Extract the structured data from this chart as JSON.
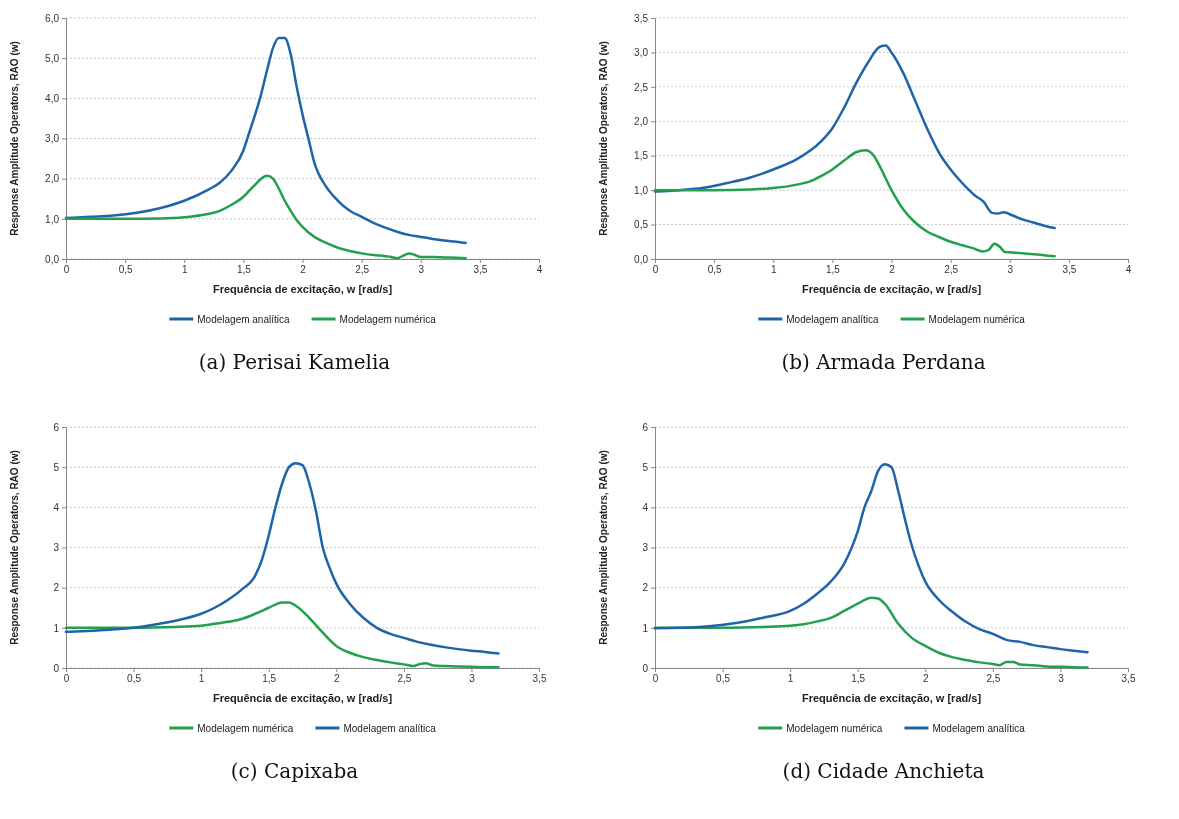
{
  "chart_data": [
    {
      "type": "line",
      "title": "(a) Perisai Kamelia",
      "xlabel": "Frequência de excitação, w [rad/s]",
      "ylabel": "Response Amplitude Operators, RAO (w)",
      "xlim": [
        0,
        4
      ],
      "xticks": [
        0,
        {
          "value": 0.5,
          "label": "0,5"
        },
        1,
        {
          "value": 1.5,
          "label": "1,5"
        },
        2,
        {
          "value": 2.5,
          "label": "2,5"
        },
        3,
        {
          "value": 3.5,
          "label": "3,5"
        },
        4
      ],
      "ylim": [
        0,
        6
      ],
      "yticks": [
        {
          "value": 0,
          "label": "0,0"
        },
        {
          "value": 1,
          "label": "1,0"
        },
        {
          "value": 2,
          "label": "2,0"
        },
        {
          "value": 3,
          "label": "3,0"
        },
        {
          "value": 4,
          "label": "4,0"
        },
        {
          "value": 5,
          "label": "5,0"
        },
        {
          "value": 6,
          "label": "6,0"
        }
      ],
      "grid": "y",
      "legend": "bottom",
      "line_style": "solid",
      "series": [
        {
          "name": "Modelagem analítica",
          "color": "#1f64a8",
          "x": [
            0,
            0.2,
            0.4,
            0.6,
            0.8,
            1.0,
            1.2,
            1.3,
            1.4,
            1.5,
            1.55,
            1.6,
            1.65,
            1.7,
            1.75,
            1.8,
            1.85,
            1.9,
            1.95,
            2.0,
            2.05,
            2.1,
            2.2,
            2.3,
            2.4,
            2.5,
            2.6,
            2.7,
            2.8,
            2.9,
            3.0,
            3.1,
            3.2,
            3.3,
            3.38
          ],
          "values": [
            1.02,
            1.05,
            1.08,
            1.15,
            1.27,
            1.45,
            1.72,
            1.9,
            2.2,
            2.7,
            3.15,
            3.6,
            4.1,
            4.7,
            5.25,
            5.5,
            5.5,
            5.1,
            4.3,
            3.6,
            3.0,
            2.4,
            1.8,
            1.45,
            1.2,
            1.05,
            0.9,
            0.78,
            0.68,
            0.6,
            0.55,
            0.5,
            0.46,
            0.43,
            0.4
          ]
        },
        {
          "name": "Modelagem numérica",
          "color": "#22a04e",
          "x": [
            0,
            0.5,
            0.8,
            1.0,
            1.2,
            1.3,
            1.4,
            1.5,
            1.55,
            1.6,
            1.65,
            1.7,
            1.75,
            1.8,
            1.85,
            1.9,
            1.95,
            2.0,
            2.1,
            2.2,
            2.3,
            2.4,
            2.5,
            2.6,
            2.7,
            2.75,
            2.8,
            2.85,
            2.9,
            2.95,
            3.0,
            3.1,
            3.2,
            3.3,
            3.38
          ],
          "values": [
            1.0,
            1.0,
            1.01,
            1.04,
            1.12,
            1.2,
            1.35,
            1.55,
            1.7,
            1.85,
            2.0,
            2.07,
            2.0,
            1.75,
            1.45,
            1.2,
            0.97,
            0.8,
            0.55,
            0.4,
            0.28,
            0.2,
            0.14,
            0.1,
            0.07,
            0.05,
            0.02,
            0.08,
            0.14,
            0.1,
            0.05,
            0.05,
            0.04,
            0.03,
            0.02
          ]
        }
      ]
    },
    {
      "type": "line",
      "title": "(b) Armada Perdana",
      "xlabel": "Frequência de excitação, w [rad/s]",
      "ylabel": "Response Amplitude Operators, RAO (w)",
      "xlim": [
        0,
        4
      ],
      "xticks": [
        0,
        {
          "value": 0.5,
          "label": "0,5"
        },
        1,
        {
          "value": 1.5,
          "label": "1,5"
        },
        2,
        {
          "value": 2.5,
          "label": "2,5"
        },
        3,
        {
          "value": 3.5,
          "label": "3,5"
        },
        4
      ],
      "ylim": [
        0,
        3.5
      ],
      "yticks": [
        {
          "value": 0,
          "label": "0,0"
        },
        {
          "value": 0.5,
          "label": "0,5"
        },
        {
          "value": 1,
          "label": "1,0"
        },
        {
          "value": 1.5,
          "label": "1,5"
        },
        {
          "value": 2,
          "label": "2,0"
        },
        {
          "value": 2.5,
          "label": "2,5"
        },
        {
          "value": 3,
          "label": "3,0"
        },
        {
          "value": 3.5,
          "label": "3,5"
        }
      ],
      "grid": "y",
      "legend": "bottom",
      "line_style": "solid",
      "series": [
        {
          "name": "Modelagem analítica",
          "color": "#1f64a8",
          "x": [
            0,
            0.2,
            0.4,
            0.6,
            0.8,
            1.0,
            1.2,
            1.4,
            1.5,
            1.6,
            1.7,
            1.8,
            1.9,
            1.95,
            2.0,
            2.1,
            2.2,
            2.3,
            2.4,
            2.5,
            2.6,
            2.7,
            2.78,
            2.85,
            2.9,
            2.95,
            3.0,
            3.1,
            3.2,
            3.3,
            3.38
          ],
          "values": [
            0.98,
            1.0,
            1.03,
            1.1,
            1.18,
            1.3,
            1.45,
            1.7,
            1.9,
            2.2,
            2.55,
            2.85,
            3.08,
            3.1,
            3.0,
            2.7,
            2.3,
            1.9,
            1.55,
            1.3,
            1.1,
            0.93,
            0.83,
            0.67,
            0.66,
            0.68,
            0.65,
            0.58,
            0.53,
            0.48,
            0.45
          ]
        },
        {
          "name": "Modelagem numérica",
          "color": "#22a04e",
          "x": [
            0,
            0.5,
            0.8,
            1.0,
            1.2,
            1.3,
            1.4,
            1.5,
            1.6,
            1.7,
            1.78,
            1.85,
            1.9,
            2.0,
            2.1,
            2.2,
            2.3,
            2.4,
            2.5,
            2.6,
            2.7,
            2.77,
            2.82,
            2.87,
            2.92,
            2.96,
            3.05,
            3.2,
            3.38
          ],
          "values": [
            1.0,
            1.0,
            1.01,
            1.03,
            1.08,
            1.12,
            1.2,
            1.3,
            1.43,
            1.55,
            1.58,
            1.5,
            1.35,
            1.0,
            0.72,
            0.53,
            0.4,
            0.32,
            0.25,
            0.2,
            0.15,
            0.11,
            0.13,
            0.22,
            0.17,
            0.1,
            0.09,
            0.07,
            0.04
          ]
        }
      ]
    },
    {
      "type": "line",
      "title": "(c) Capixaba",
      "xlabel": "Frequência de excitação, w [rad/s]",
      "ylabel": "Response Amplitude Operators, RAO (w)",
      "xlim": [
        0,
        3.5
      ],
      "xticks": [
        0,
        {
          "value": 0.5,
          "label": "0,5"
        },
        1,
        {
          "value": 1.5,
          "label": "1,5"
        },
        2,
        {
          "value": 2.5,
          "label": "2,5"
        },
        3,
        {
          "value": 3.5,
          "label": "3,5"
        }
      ],
      "ylim": [
        0,
        6
      ],
      "yticks": [
        0,
        1,
        2,
        3,
        4,
        5,
        6
      ],
      "grid": "y",
      "legend": "bottom",
      "line_style": "solid",
      "series": [
        {
          "name": "Modelagem numérica",
          "color": "#22a04e",
          "x": [
            0,
            0.5,
            0.8,
            1.0,
            1.1,
            1.2,
            1.3,
            1.4,
            1.5,
            1.6,
            1.65,
            1.7,
            1.8,
            1.9,
            2.0,
            2.1,
            2.2,
            2.3,
            2.4,
            2.5,
            2.57,
            2.62,
            2.66,
            2.72,
            2.8,
            2.9,
            3.0,
            3.1,
            3.2
          ],
          "values": [
            1.0,
            1.0,
            1.02,
            1.05,
            1.1,
            1.15,
            1.22,
            1.35,
            1.5,
            1.63,
            1.63,
            1.55,
            1.25,
            0.88,
            0.55,
            0.38,
            0.27,
            0.2,
            0.14,
            0.09,
            0.05,
            0.1,
            0.12,
            0.06,
            0.05,
            0.04,
            0.03,
            0.02,
            0.02
          ]
        },
        {
          "name": "Modelagem analítica",
          "color": "#1f64a8",
          "x": [
            0,
            0.2,
            0.4,
            0.5,
            0.6,
            0.8,
            1.0,
            1.1,
            1.2,
            1.3,
            1.4,
            1.45,
            1.5,
            1.55,
            1.6,
            1.65,
            1.7,
            1.75,
            1.8,
            1.85,
            1.9,
            1.95,
            2.0,
            2.1,
            2.2,
            2.3,
            2.4,
            2.5,
            2.6,
            2.7,
            2.8,
            2.9,
            3.0,
            3.1,
            3.2
          ],
          "values": [
            0.9,
            0.93,
            0.97,
            1.0,
            1.05,
            1.17,
            1.35,
            1.5,
            1.7,
            1.95,
            2.3,
            2.7,
            3.3,
            4.0,
            4.6,
            5.0,
            5.1,
            5.05,
            4.6,
            3.9,
            3.0,
            2.5,
            2.1,
            1.6,
            1.25,
            1.0,
            0.85,
            0.75,
            0.65,
            0.58,
            0.52,
            0.47,
            0.43,
            0.4,
            0.36
          ]
        }
      ]
    },
    {
      "type": "line",
      "title": "(d) Cidade Anchieta",
      "xlabel": "Frequência de excitação, w [rad/s]",
      "ylabel": "Response Amplitude Operators, RAO (w)",
      "xlim": [
        0,
        3.5
      ],
      "xticks": [
        0,
        {
          "value": 0.5,
          "label": "0,5"
        },
        1,
        {
          "value": 1.5,
          "label": "1,5"
        },
        2,
        {
          "value": 2.5,
          "label": "2,5"
        },
        3,
        {
          "value": 3.5,
          "label": "3,5"
        }
      ],
      "ylim": [
        0,
        6
      ],
      "yticks": [
        0,
        1,
        2,
        3,
        4,
        5,
        6
      ],
      "grid": "y",
      "legend": "bottom",
      "line_style": "solid",
      "series": [
        {
          "name": "Modelagem numérica",
          "color": "#22a04e",
          "x": [
            0,
            0.5,
            0.8,
            1.0,
            1.1,
            1.2,
            1.3,
            1.4,
            1.5,
            1.6,
            1.65,
            1.7,
            1.8,
            1.9,
            2.0,
            2.1,
            2.2,
            2.3,
            2.4,
            2.5,
            2.55,
            2.6,
            2.65,
            2.7,
            2.8,
            2.9,
            3.0,
            3.1,
            3.2
          ],
          "values": [
            1.0,
            1.0,
            1.02,
            1.05,
            1.09,
            1.16,
            1.25,
            1.42,
            1.6,
            1.75,
            1.73,
            1.6,
            1.1,
            0.75,
            0.55,
            0.38,
            0.27,
            0.2,
            0.14,
            0.1,
            0.07,
            0.15,
            0.15,
            0.09,
            0.07,
            0.04,
            0.03,
            0.02,
            0.01
          ]
        },
        {
          "name": "Modelagem analítica",
          "color": "#1f64a8",
          "x": [
            0,
            0.2,
            0.4,
            0.6,
            0.8,
            1.0,
            1.1,
            1.2,
            1.3,
            1.4,
            1.45,
            1.5,
            1.55,
            1.6,
            1.65,
            1.7,
            1.75,
            1.8,
            1.85,
            1.9,
            1.95,
            2.0,
            2.1,
            2.2,
            2.3,
            2.4,
            2.5,
            2.6,
            2.7,
            2.8,
            2.9,
            3.0,
            3.1,
            3.2
          ],
          "values": [
            0.99,
            1.0,
            1.04,
            1.12,
            1.25,
            1.42,
            1.6,
            1.85,
            2.15,
            2.6,
            2.95,
            3.4,
            4.0,
            4.4,
            4.9,
            5.07,
            5.0,
            4.4,
            3.7,
            3.05,
            2.55,
            2.15,
            1.7,
            1.4,
            1.15,
            0.97,
            0.85,
            0.7,
            0.65,
            0.57,
            0.52,
            0.47,
            0.43,
            0.39
          ]
        }
      ]
    }
  ]
}
